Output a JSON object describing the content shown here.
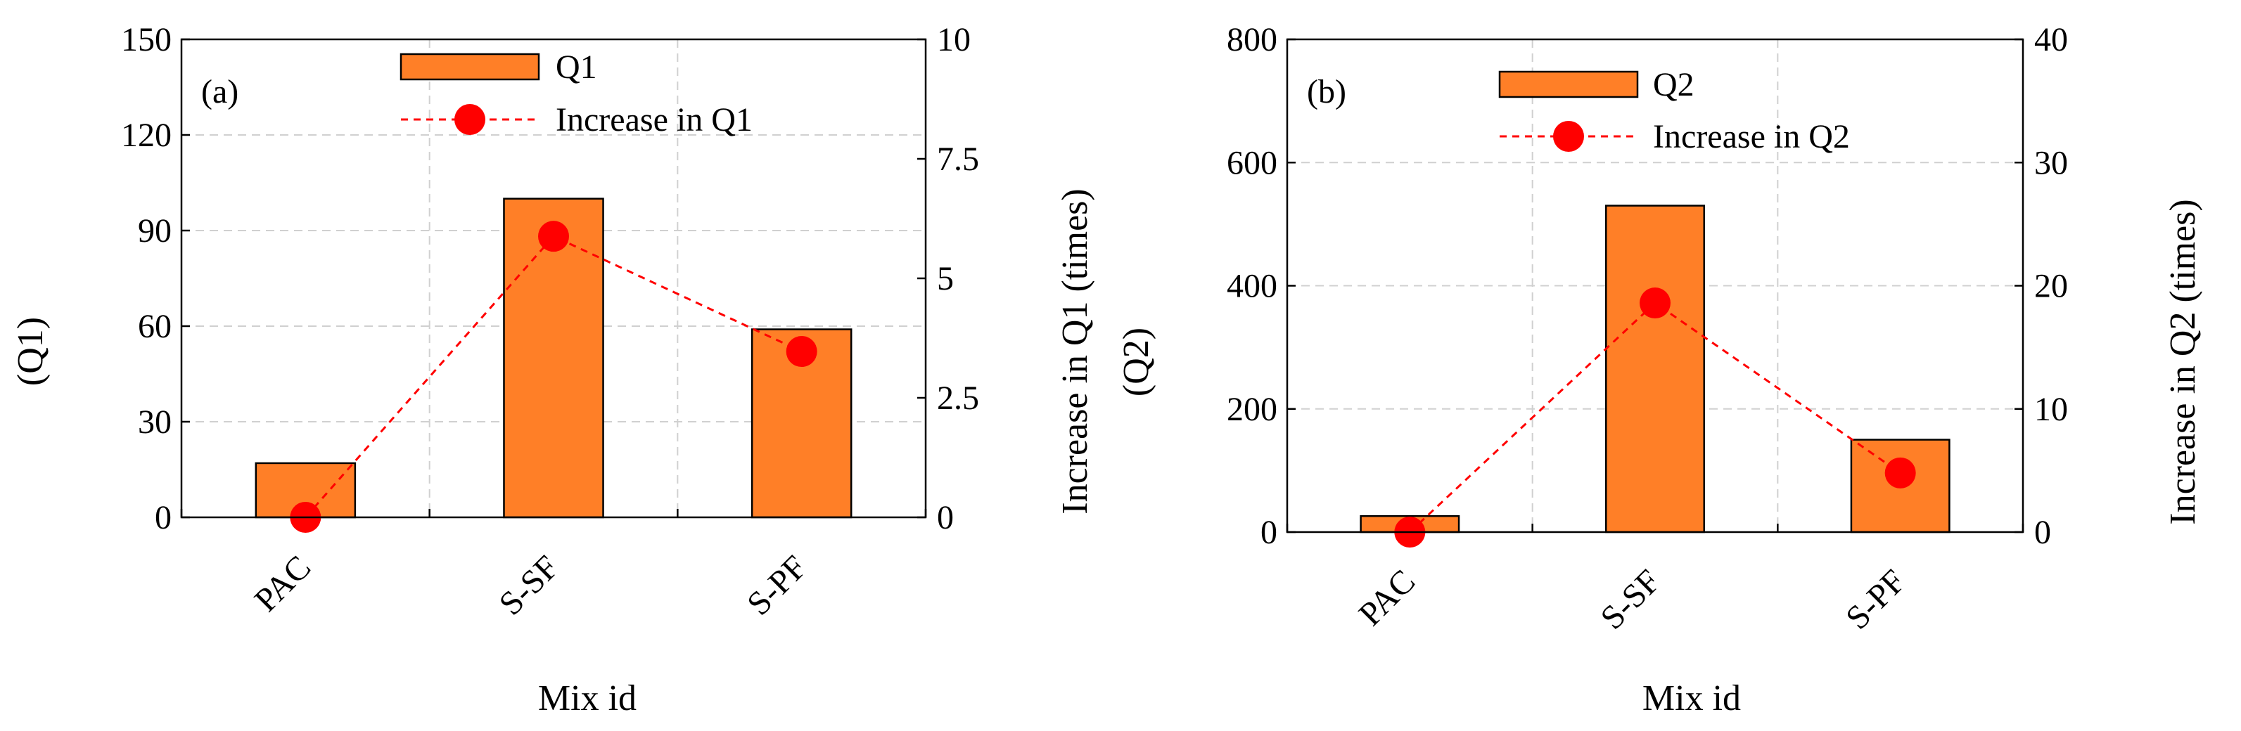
{
  "chart_data": [
    {
      "type": "bar",
      "panel_label": "(a)",
      "categories": [
        "PAC",
        "S-SF",
        "S-PF"
      ],
      "xlabel": "Mix id",
      "ylabel": "(Q1)",
      "y2label": "Increase in Q1 (times)",
      "ylim": [
        0,
        150
      ],
      "y2lim": [
        0,
        10
      ],
      "yticks": [
        "0",
        "30",
        "60",
        "90",
        "120",
        "150"
      ],
      "y2ticks": [
        "0",
        "2.5",
        "5",
        "7.5",
        "10"
      ],
      "grid": true,
      "legend_position": "top-center",
      "series": [
        {
          "name": "Q1",
          "kind": "bar",
          "axis": "left",
          "color": "#FF7F27",
          "values": [
            17,
            100,
            59
          ]
        },
        {
          "name": "Increase in Q1",
          "kind": "line",
          "axis": "right",
          "color": "#FF0000",
          "style": "dashed",
          "values": [
            0,
            5.88,
            3.47
          ]
        }
      ]
    },
    {
      "type": "bar",
      "panel_label": "(b)",
      "categories": [
        "PAC",
        "S-SF",
        "S-PF"
      ],
      "xlabel": "Mix id",
      "ylabel": "(Q2)",
      "y2label": "Increase in Q2 (times)",
      "ylim": [
        0,
        800
      ],
      "y2lim": [
        0,
        40
      ],
      "yticks": [
        "0",
        "200",
        "400",
        "600",
        "800"
      ],
      "y2ticks": [
        "0",
        "10",
        "20",
        "30",
        "40"
      ],
      "grid": true,
      "legend_position": "top-center",
      "series": [
        {
          "name": "Q2",
          "kind": "bar",
          "axis": "left",
          "color": "#FF7F27",
          "values": [
            26,
            530,
            150
          ]
        },
        {
          "name": "Increase in Q2",
          "kind": "line",
          "axis": "right",
          "color": "#FF0000",
          "style": "dashed",
          "values": [
            0,
            18.6,
            4.8
          ]
        }
      ]
    }
  ]
}
